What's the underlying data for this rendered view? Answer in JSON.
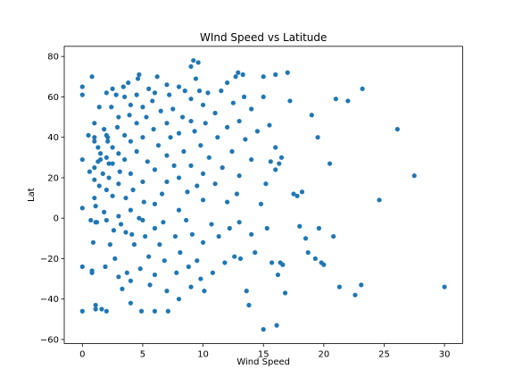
{
  "chart_data": {
    "type": "scatter",
    "title": "WInd Speed vs Latitude",
    "xlabel": "Wind Speed",
    "ylabel": "Lat",
    "xlim": [
      -1.5,
      31.5
    ],
    "ylim": [
      -62,
      85
    ],
    "xticks": [
      0,
      5,
      10,
      15,
      20,
      25,
      30
    ],
    "yticks": [
      -60,
      -40,
      -20,
      0,
      20,
      40,
      60,
      80
    ],
    "grid": false,
    "marker_color": "#1f77b4",
    "series": [
      {
        "points": [
          [
            0.0,
            61
          ],
          [
            0.0,
            65
          ],
          [
            0.0,
            29
          ],
          [
            0.0,
            5
          ],
          [
            0.0,
            -24
          ],
          [
            0.0,
            -46
          ],
          [
            0.5,
            41
          ],
          [
            0.6,
            23
          ],
          [
            0.7,
            -1
          ],
          [
            0.8,
            70
          ],
          [
            0.8,
            -27
          ],
          [
            0.8,
            -26
          ],
          [
            0.9,
            -12
          ],
          [
            1.0,
            47
          ],
          [
            1.0,
            40
          ],
          [
            1.0,
            38
          ],
          [
            1.0,
            25
          ],
          [
            1.0,
            19
          ],
          [
            1.0,
            10
          ],
          [
            1.1,
            6
          ],
          [
            1.1,
            -2
          ],
          [
            1.1,
            -43
          ],
          [
            1.1,
            -45
          ],
          [
            1.2,
            -2
          ],
          [
            1.3,
            35
          ],
          [
            1.3,
            28
          ],
          [
            1.4,
            16
          ],
          [
            1.4,
            55
          ],
          [
            1.5,
            32
          ],
          [
            1.5,
            29
          ],
          [
            1.6,
            -45
          ],
          [
            1.7,
            22
          ],
          [
            1.8,
            44
          ],
          [
            1.8,
            3
          ],
          [
            1.9,
            -24
          ],
          [
            2.0,
            62
          ],
          [
            2.0,
            41
          ],
          [
            2.0,
            30
          ],
          [
            2.0,
            14
          ],
          [
            2.0,
            -1
          ],
          [
            2.0,
            -46
          ],
          [
            2.1,
            40
          ],
          [
            2.1,
            38
          ],
          [
            2.2,
            27
          ],
          [
            2.2,
            20
          ],
          [
            2.3,
            -13
          ],
          [
            2.4,
            55
          ],
          [
            2.5,
            64
          ],
          [
            2.5,
            35
          ],
          [
            2.5,
            27
          ],
          [
            2.5,
            11
          ],
          [
            2.6,
            -6
          ],
          [
            2.7,
            -20
          ],
          [
            2.8,
            61
          ],
          [
            2.9,
            45
          ],
          [
            3.0,
            50
          ],
          [
            3.0,
            32
          ],
          [
            3.0,
            17
          ],
          [
            3.0,
            1
          ],
          [
            3.0,
            -29
          ],
          [
            3.1,
            23
          ],
          [
            3.2,
            -3
          ],
          [
            3.3,
            -35
          ],
          [
            3.4,
            65
          ],
          [
            3.5,
            60
          ],
          [
            3.5,
            41
          ],
          [
            3.5,
            29
          ],
          [
            3.6,
            10
          ],
          [
            3.6,
            -7
          ],
          [
            3.7,
            -27
          ],
          [
            3.8,
            67
          ],
          [
            3.9,
            51
          ],
          [
            4.0,
            56
          ],
          [
            4.0,
            38
          ],
          [
            4.0,
            22
          ],
          [
            4.0,
            4
          ],
          [
            4.0,
            -31
          ],
          [
            4.0,
            -42
          ],
          [
            4.1,
            -8
          ],
          [
            4.2,
            14
          ],
          [
            4.3,
            -13
          ],
          [
            4.5,
            61
          ],
          [
            4.5,
            47
          ],
          [
            4.5,
            33
          ],
          [
            4.6,
            69
          ],
          [
            4.7,
            71
          ],
          [
            4.7,
            0
          ],
          [
            4.8,
            -25
          ],
          [
            4.9,
            -46
          ],
          [
            5.0,
            55
          ],
          [
            5.0,
            40
          ],
          [
            5.0,
            18
          ],
          [
            5.0,
            -1
          ],
          [
            5.1,
            8
          ],
          [
            5.2,
            -9
          ],
          [
            5.3,
            50
          ],
          [
            5.4,
            28
          ],
          [
            5.5,
            64
          ],
          [
            5.5,
            -19
          ],
          [
            5.6,
            -33
          ],
          [
            5.8,
            58
          ],
          [
            5.9,
            44
          ],
          [
            6.0,
            62
          ],
          [
            6.0,
            24
          ],
          [
            6.0,
            7
          ],
          [
            6.0,
            -5
          ],
          [
            6.0,
            -28
          ],
          [
            6.0,
            -46
          ],
          [
            6.2,
            70
          ],
          [
            6.3,
            36
          ],
          [
            6.4,
            -13
          ],
          [
            6.5,
            53
          ],
          [
            6.6,
            12
          ],
          [
            6.7,
            -2
          ],
          [
            6.8,
            -21
          ],
          [
            7.0,
            66
          ],
          [
            7.0,
            47
          ],
          [
            7.0,
            31
          ],
          [
            7.0,
            18
          ],
          [
            7.0,
            -36
          ],
          [
            7.1,
            -46
          ],
          [
            7.2,
            61
          ],
          [
            7.3,
            40
          ],
          [
            7.5,
            54
          ],
          [
            7.6,
            26
          ],
          [
            7.7,
            -9
          ],
          [
            7.8,
            -27
          ],
          [
            8.0,
            65
          ],
          [
            8.0,
            42
          ],
          [
            8.0,
            20
          ],
          [
            8.0,
            4
          ],
          [
            8.0,
            -40
          ],
          [
            8.1,
            -17
          ],
          [
            8.3,
            50
          ],
          [
            8.4,
            33
          ],
          [
            8.5,
            63
          ],
          [
            8.6,
            -1
          ],
          [
            8.7,
            13
          ],
          [
            8.8,
            -24
          ],
          [
            9.0,
            75
          ],
          [
            9.0,
            59
          ],
          [
            9.0,
            48
          ],
          [
            9.0,
            26
          ],
          [
            9.0,
            -34
          ],
          [
            9.1,
            -8
          ],
          [
            9.2,
            78
          ],
          [
            9.3,
            43
          ],
          [
            9.4,
            69
          ],
          [
            9.5,
            16
          ],
          [
            9.5,
            -21
          ],
          [
            9.6,
            77
          ],
          [
            9.7,
            63
          ],
          [
            9.8,
            36
          ],
          [
            9.8,
            -30
          ],
          [
            10.0,
            56
          ],
          [
            10.0,
            22
          ],
          [
            10.0,
            9
          ],
          [
            10.0,
            -12
          ],
          [
            10.1,
            -36
          ],
          [
            10.2,
            47
          ],
          [
            10.4,
            62
          ],
          [
            10.5,
            30
          ],
          [
            10.7,
            -3
          ],
          [
            10.8,
            -27
          ],
          [
            11.0,
            52
          ],
          [
            11.0,
            17
          ],
          [
            11.2,
            40
          ],
          [
            11.3,
            -9
          ],
          [
            11.5,
            63
          ],
          [
            11.6,
            25
          ],
          [
            11.8,
            -22
          ],
          [
            12.0,
            67
          ],
          [
            12.0,
            45
          ],
          [
            12.0,
            8
          ],
          [
            12.2,
            -5
          ],
          [
            12.4,
            33
          ],
          [
            12.5,
            57
          ],
          [
            12.6,
            -19
          ],
          [
            12.7,
            70
          ],
          [
            12.8,
            12
          ],
          [
            12.9,
            72
          ],
          [
            13.0,
            48
          ],
          [
            13.0,
            21
          ],
          [
            13.0,
            -2
          ],
          [
            13.1,
            -20
          ],
          [
            13.3,
            71
          ],
          [
            13.4,
            60
          ],
          [
            13.5,
            39
          ],
          [
            13.6,
            -36
          ],
          [
            13.8,
            -43
          ],
          [
            14.0,
            54
          ],
          [
            14.0,
            29
          ],
          [
            14.0,
            -8
          ],
          [
            14.3,
            -17
          ],
          [
            14.5,
            43
          ],
          [
            14.8,
            7
          ],
          [
            15.0,
            70
          ],
          [
            15.0,
            60
          ],
          [
            15.0,
            -55
          ],
          [
            15.2,
            17
          ],
          [
            15.3,
            -5
          ],
          [
            15.5,
            46
          ],
          [
            15.6,
            28
          ],
          [
            15.7,
            -22
          ],
          [
            16.0,
            71
          ],
          [
            16.0,
            35
          ],
          [
            16.0,
            24
          ],
          [
            16.1,
            -53
          ],
          [
            16.2,
            -28
          ],
          [
            16.3,
            27
          ],
          [
            16.4,
            -22
          ],
          [
            16.5,
            30
          ],
          [
            16.6,
            -23
          ],
          [
            16.8,
            -37
          ],
          [
            17.0,
            72
          ],
          [
            17.2,
            58
          ],
          [
            17.5,
            12
          ],
          [
            17.8,
            11
          ],
          [
            18.0,
            -4
          ],
          [
            18.2,
            13
          ],
          [
            18.5,
            -10
          ],
          [
            18.7,
            -17
          ],
          [
            19.0,
            51
          ],
          [
            19.3,
            -20
          ],
          [
            19.5,
            40
          ],
          [
            19.6,
            -5
          ],
          [
            19.8,
            -22
          ],
          [
            20.0,
            -23
          ],
          [
            20.5,
            27
          ],
          [
            20.8,
            -9
          ],
          [
            21.0,
            59
          ],
          [
            21.3,
            -34
          ],
          [
            22.0,
            58
          ],
          [
            22.6,
            -38
          ],
          [
            23.1,
            -33
          ],
          [
            23.2,
            64
          ],
          [
            24.6,
            9
          ],
          [
            26.1,
            44
          ],
          [
            27.5,
            21
          ],
          [
            30.0,
            -34
          ]
        ]
      }
    ]
  }
}
